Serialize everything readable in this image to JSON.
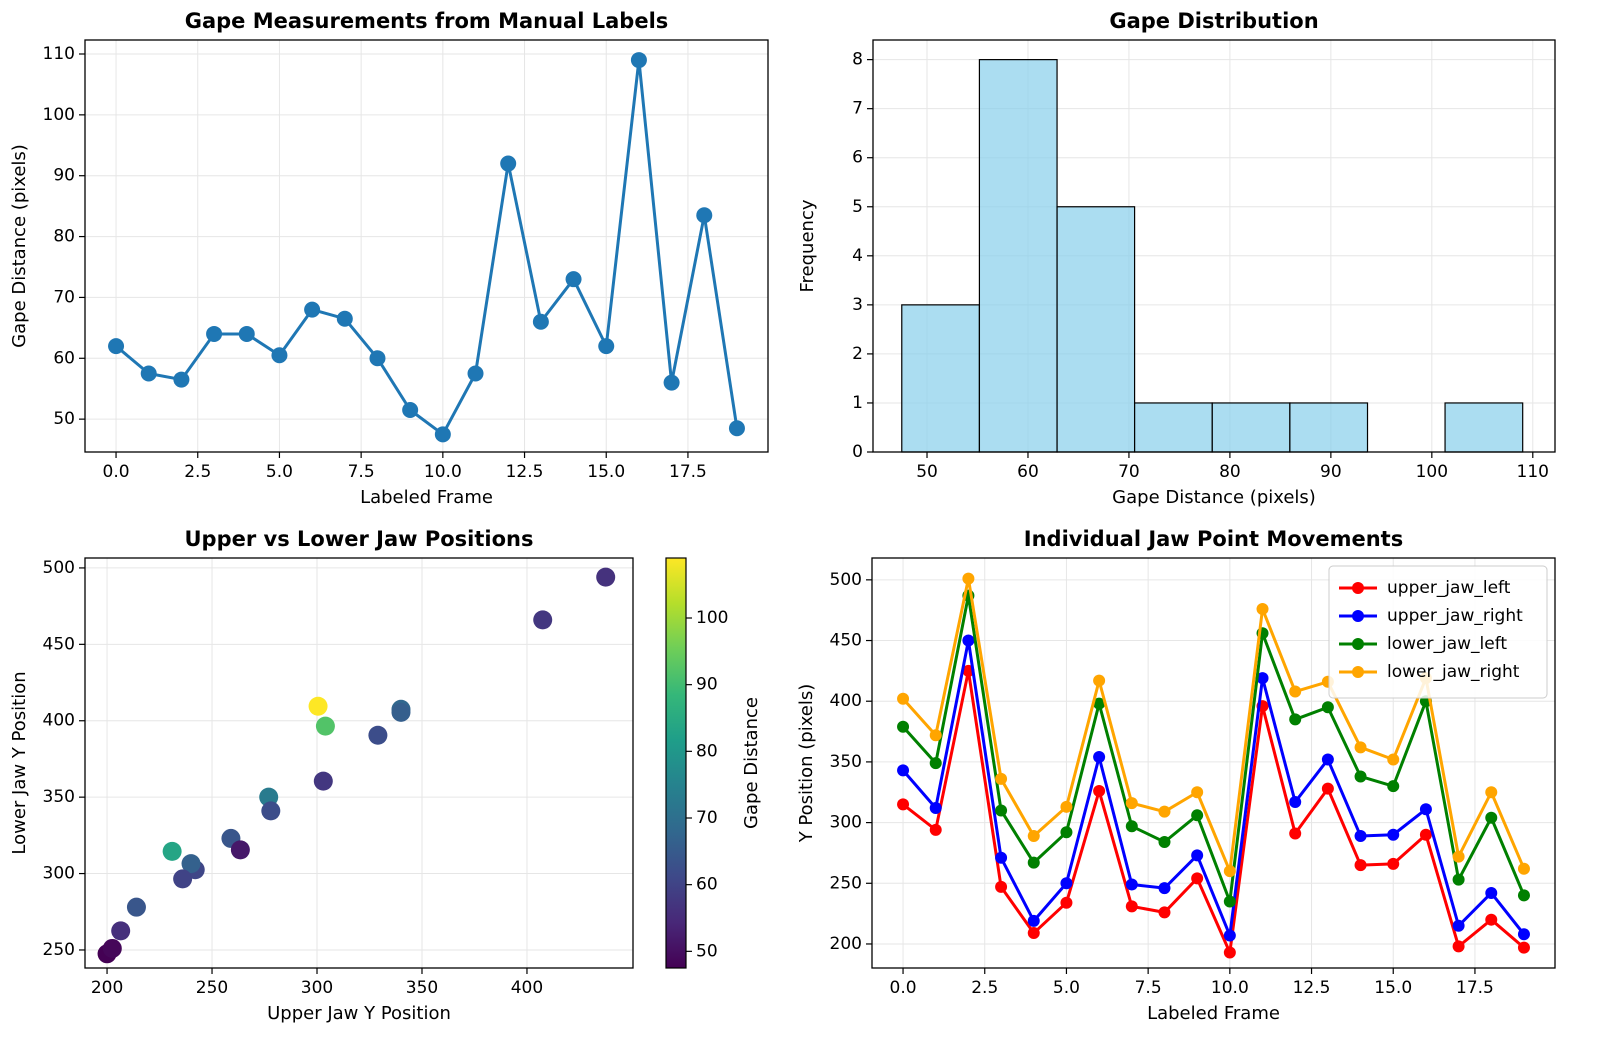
{
  "chart_data": [
    {
      "type": "line",
      "title": "Gape Measurements from Manual Labels",
      "xlabel": "Labeled Frame",
      "ylabel": "Gape Distance (pixels)",
      "x": [
        0,
        1,
        2,
        3,
        4,
        5,
        6,
        7,
        8,
        9,
        10,
        11,
        12,
        13,
        14,
        15,
        16,
        17,
        18,
        19
      ],
      "values": [
        62,
        57.5,
        56.5,
        64,
        64,
        60.5,
        68,
        66.5,
        60,
        51.5,
        47.5,
        57.5,
        92,
        66,
        73,
        62,
        109,
        56,
        83.5,
        48.5
      ],
      "color": "#1f77b4",
      "xlim": [
        -0.95,
        19.95
      ],
      "xticks": [
        {
          "value": 0,
          "label": "0.0"
        },
        2.5,
        {
          "value": 5,
          "label": "5.0"
        },
        7.5,
        {
          "value": 10,
          "label": "10.0"
        },
        12.5,
        {
          "value": 15,
          "label": "15.0"
        },
        17.5
      ],
      "ylim": [
        44.6,
        112.3
      ],
      "yticks": [
        50,
        60,
        70,
        80,
        90,
        100,
        110
      ],
      "grid": true
    },
    {
      "type": "histogram",
      "title": "Gape Distribution",
      "xlabel": "Gape Distance (pixels)",
      "ylabel": "Frequency",
      "bins": [
        47.5,
        55.19,
        62.88,
        70.56,
        78.25,
        85.94,
        93.63,
        101.31,
        109
      ],
      "values": [
        3,
        8,
        5,
        1,
        1,
        1,
        0,
        1
      ],
      "color": "#87ceeb",
      "alpha": 0.7,
      "edgecolor": "#000000",
      "xlim": [
        44.65,
        112.2
      ],
      "xticks": [
        50,
        60,
        70,
        80,
        90,
        100,
        110
      ],
      "ylim": [
        0,
        8.4
      ],
      "yticks": [
        0,
        1,
        2,
        3,
        4,
        5,
        6,
        7,
        8
      ],
      "grid": true
    },
    {
      "type": "scatter",
      "title": "Upper vs Lower Jaw Positions",
      "xlabel": "Upper Jaw Y Position",
      "ylabel": "Lower Jaw Y Position",
      "x": [
        329,
        303,
        437.5,
        259,
        214,
        242,
        340,
        240,
        236,
        263.5,
        200,
        407.5,
        304,
        340,
        277,
        278,
        300.5,
        206.5,
        231,
        202.5
      ],
      "values": [
        390.5,
        360.5,
        494,
        323,
        278,
        302.5,
        407.5,
        306.5,
        296.5,
        315.5,
        247.5,
        466,
        396.5,
        405.5,
        350,
        341,
        409.5,
        262.5,
        314.5,
        251
      ],
      "c": [
        62,
        57.5,
        56.5,
        64,
        64,
        60.5,
        68,
        66.5,
        60,
        51.5,
        47.5,
        57.5,
        92,
        66,
        73,
        62,
        109,
        56,
        83.5,
        48.5
      ],
      "colormap": "viridis",
      "colorbar": {
        "label": "Gape Distance",
        "lim": [
          47.5,
          109
        ],
        "ticks": [
          50,
          60,
          70,
          80,
          90,
          100
        ]
      },
      "xlim": [
        189.5,
        450.5
      ],
      "xticks": [
        200,
        250,
        300,
        350,
        400
      ],
      "ylim": [
        238.2,
        506.5
      ],
      "yticks": [
        250,
        300,
        350,
        400,
        450,
        500
      ],
      "grid": true
    },
    {
      "type": "line",
      "title": "Individual Jaw Point Movements",
      "xlabel": "Labeled Frame",
      "ylabel": "Y Position (pixels)",
      "x": [
        0,
        1,
        2,
        3,
        4,
        5,
        6,
        7,
        8,
        9,
        10,
        11,
        12,
        13,
        14,
        15,
        16,
        17,
        18,
        19
      ],
      "series": [
        {
          "name": "upper_jaw_left",
          "color": "#ff0000",
          "values": [
            315,
            294,
            425,
            247,
            209,
            234,
            326,
            231,
            226,
            254,
            193,
            396,
            291,
            328,
            265,
            266,
            290,
            198,
            220,
            197
          ]
        },
        {
          "name": "upper_jaw_right",
          "color": "#0000ff",
          "values": [
            343,
            312,
            450,
            271,
            219,
            250,
            354,
            249,
            246,
            273,
            207,
            419,
            317,
            352,
            289,
            290,
            311,
            215,
            242,
            208
          ]
        },
        {
          "name": "lower_jaw_left",
          "color": "#008000",
          "values": [
            379,
            349,
            487,
            310,
            267,
            292,
            398,
            297,
            284,
            306,
            235,
            456,
            385,
            395,
            338,
            330,
            400,
            253,
            304,
            240
          ]
        },
        {
          "name": "lower_jaw_right",
          "color": "#ffa500",
          "values": [
            402,
            372,
            501,
            336,
            289,
            313,
            417,
            316,
            309,
            325,
            260,
            476,
            408,
            416,
            362,
            352,
            419,
            272,
            325,
            262
          ]
        }
      ],
      "legend": "upper right",
      "xlim": [
        -0.95,
        19.95
      ],
      "xticks": [
        {
          "value": 0,
          "label": "0.0"
        },
        2.5,
        {
          "value": 5,
          "label": "5.0"
        },
        7.5,
        {
          "value": 10,
          "label": "10.0"
        },
        12.5,
        {
          "value": 15,
          "label": "15.0"
        },
        17.5
      ],
      "ylim": [
        180.2,
        518
      ],
      "yticks": [
        200,
        250,
        300,
        350,
        400,
        450,
        500
      ],
      "grid": true
    }
  ]
}
